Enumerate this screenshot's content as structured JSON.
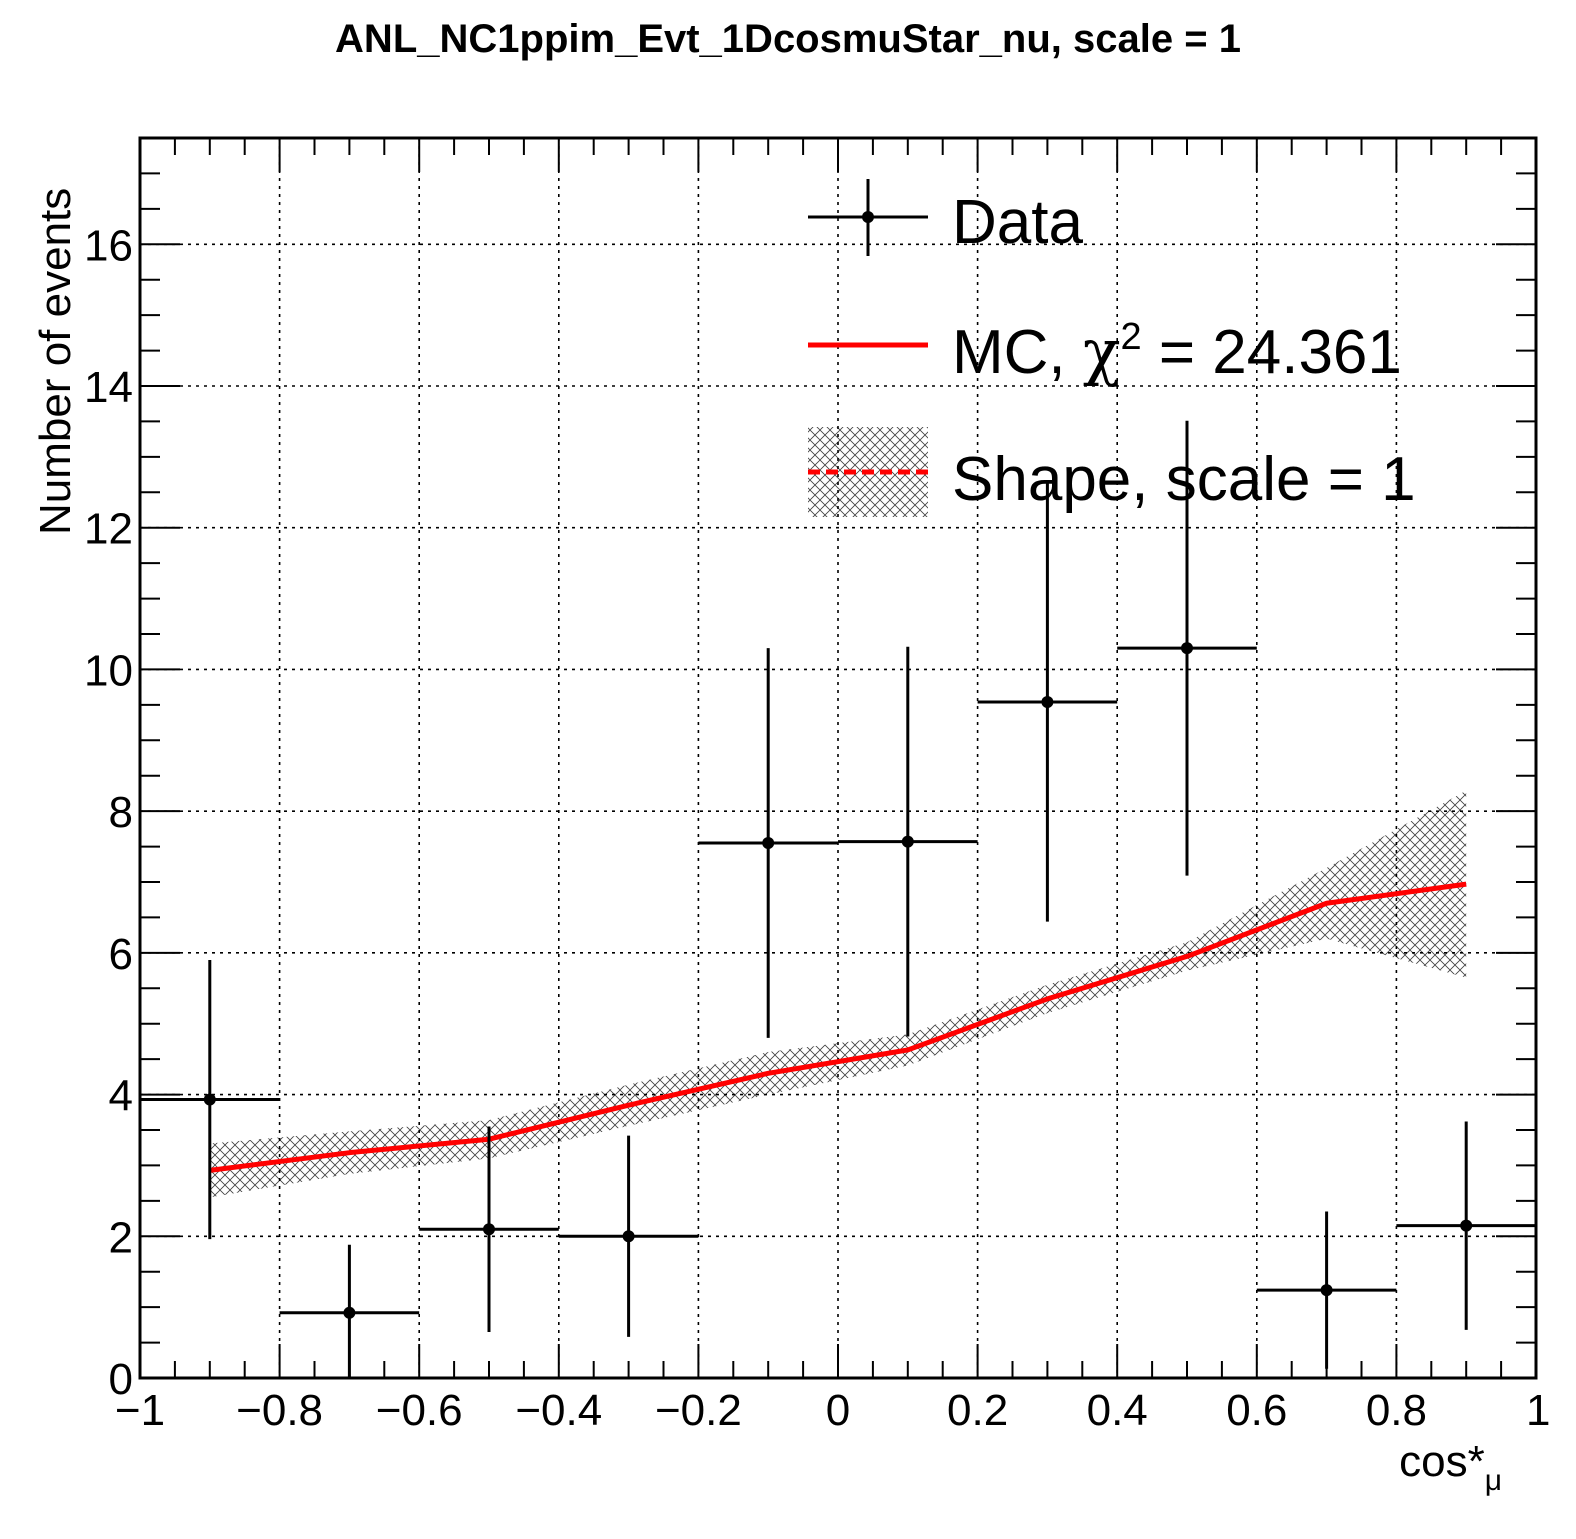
{
  "chart_data": {
    "type": "histogram-with-errors",
    "title": "ANL_NC1ppim_Evt_1DcosmuStar_nu, scale = 1",
    "xlabel": "cos*",
    "xlabel_sub": "μ",
    "ylabel": "Number of events",
    "xlim": [
      -1,
      1
    ],
    "ylim": [
      0,
      17.5
    ],
    "grid": true,
    "x_ticks": [
      -1,
      -0.8,
      -0.6,
      -0.4,
      -0.2,
      0,
      0.2,
      0.4,
      0.6,
      0.8,
      1
    ],
    "x_tick_labels": [
      "−1",
      "−0.8",
      "−0.6",
      "−0.4",
      "−0.2",
      "0",
      "0.2",
      "0.4",
      "0.6",
      "0.8",
      "1"
    ],
    "y_ticks": [
      0,
      2,
      4,
      6,
      8,
      10,
      12,
      14,
      16
    ],
    "y_tick_labels": [
      "0",
      "2",
      "4",
      "6",
      "8",
      "10",
      "12",
      "14",
      "16"
    ],
    "legend_position": "top-right",
    "legend": {
      "data_label": "Data",
      "mc_label_prefix": "MC, ",
      "mc_chi": "χ",
      "mc_chi_sup": "2",
      "mc_value": " = 24.361",
      "shape_label": "Shape, scale = 1"
    },
    "data": {
      "name": "Data",
      "bin_edges": [
        -1,
        -0.8,
        -0.6,
        -0.4,
        -0.2,
        0,
        0.2,
        0.4,
        0.6,
        0.8,
        1
      ],
      "x": [
        -0.9,
        -0.7,
        -0.5,
        -0.3,
        -0.1,
        0.1,
        0.3,
        0.5,
        0.7,
        0.9
      ],
      "y": [
        3.93,
        0.92,
        2.1,
        2.0,
        7.55,
        7.57,
        9.54,
        10.3,
        1.24,
        2.15
      ],
      "y_err": [
        1.97,
        0.96,
        1.45,
        1.42,
        2.75,
        2.75,
        3.1,
        3.21,
        1.11,
        1.47
      ]
    },
    "mc": {
      "name": "MC",
      "color": "#ff0000",
      "x": [
        -0.9,
        -0.7,
        -0.5,
        -0.3,
        -0.1,
        0.1,
        0.3,
        0.5,
        0.7,
        0.9
      ],
      "y": [
        2.93,
        3.18,
        3.37,
        3.85,
        4.3,
        4.63,
        5.35,
        5.95,
        6.7,
        6.97
      ]
    },
    "shape": {
      "name": "Shape",
      "color": "#ff0000",
      "band_color": "#000000",
      "x": [
        -0.9,
        -0.7,
        -0.5,
        -0.3,
        -0.1,
        0.1,
        0.3,
        0.5,
        0.7,
        0.9
      ],
      "y": [
        2.93,
        3.18,
        3.37,
        3.85,
        4.3,
        4.63,
        5.35,
        5.95,
        6.7,
        6.97
      ],
      "y_err": [
        0.38,
        0.3,
        0.27,
        0.29,
        0.3,
        0.22,
        0.2,
        0.2,
        0.5,
        1.32
      ]
    }
  }
}
